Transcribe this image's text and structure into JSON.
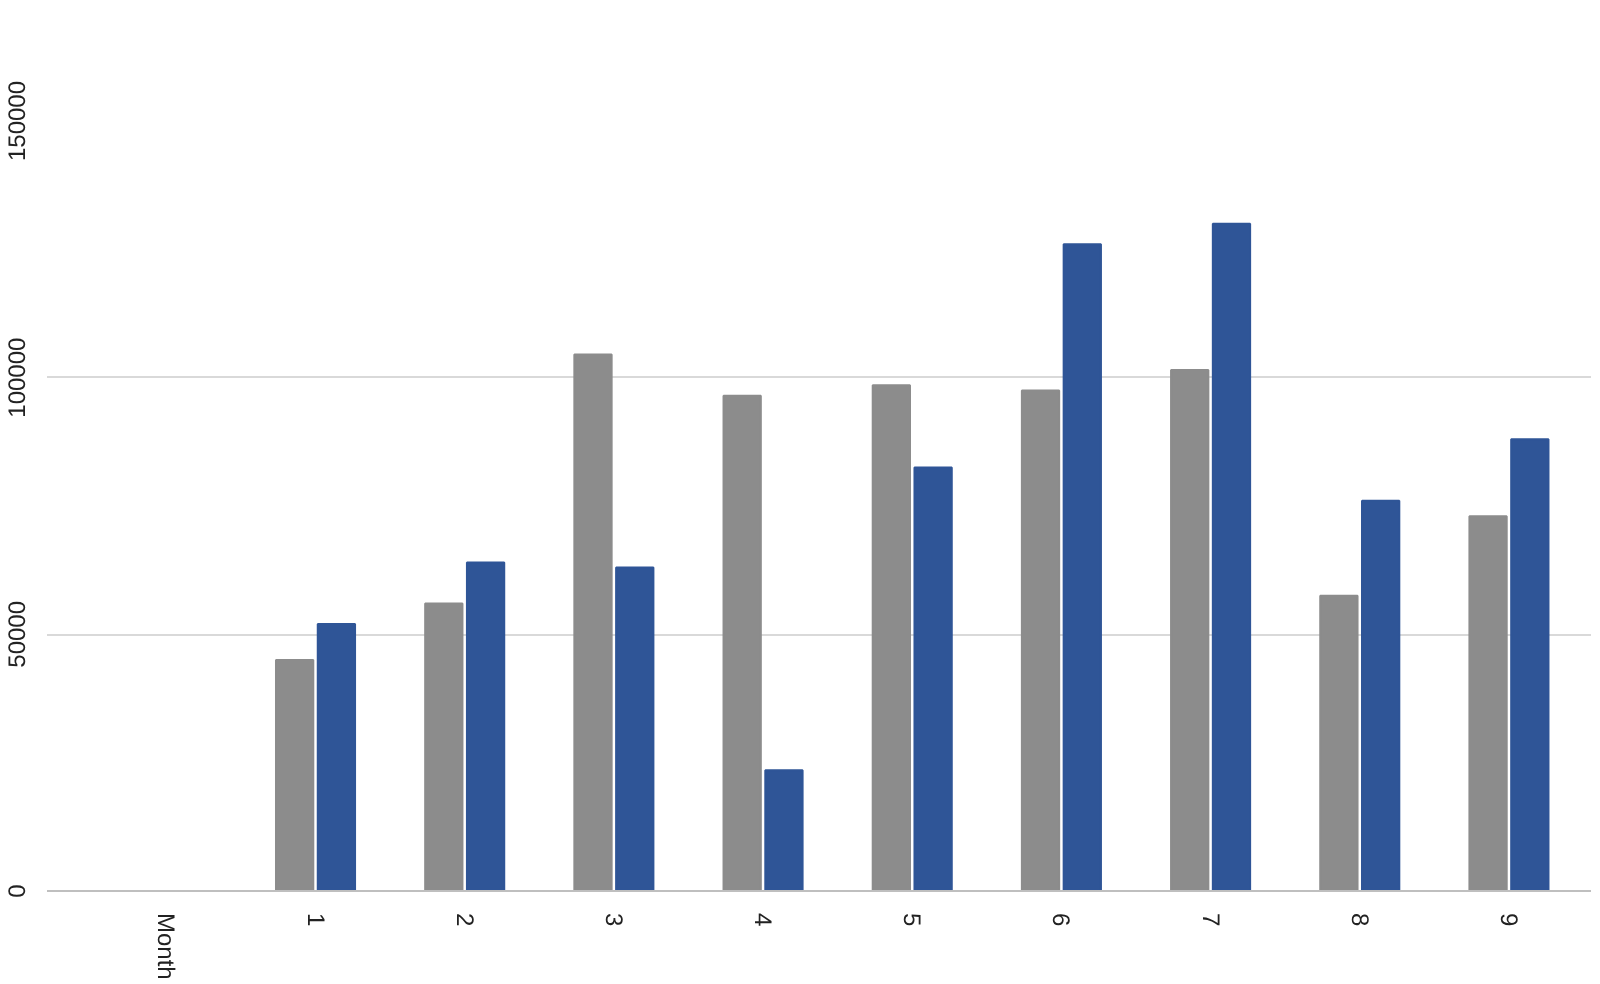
{
  "chart_data": {
    "type": "bar",
    "categories": [
      "Month",
      "1",
      "2",
      "3",
      "4",
      "5",
      "6",
      "7",
      "8",
      "9"
    ],
    "series": [
      {
        "color": "#8c8c8c",
        "values": [
          null,
          45000,
          56000,
          104500,
          96500,
          98500,
          97500,
          101500,
          57500,
          73000
        ]
      },
      {
        "color": "#2f5597",
        "values": [
          null,
          52000,
          64000,
          63000,
          23500,
          82500,
          126000,
          130000,
          76000,
          88000
        ]
      }
    ],
    "ylim": [
      0,
      150000
    ],
    "yticks": [
      0,
      50000,
      100000,
      150000
    ],
    "grid": "y"
  }
}
